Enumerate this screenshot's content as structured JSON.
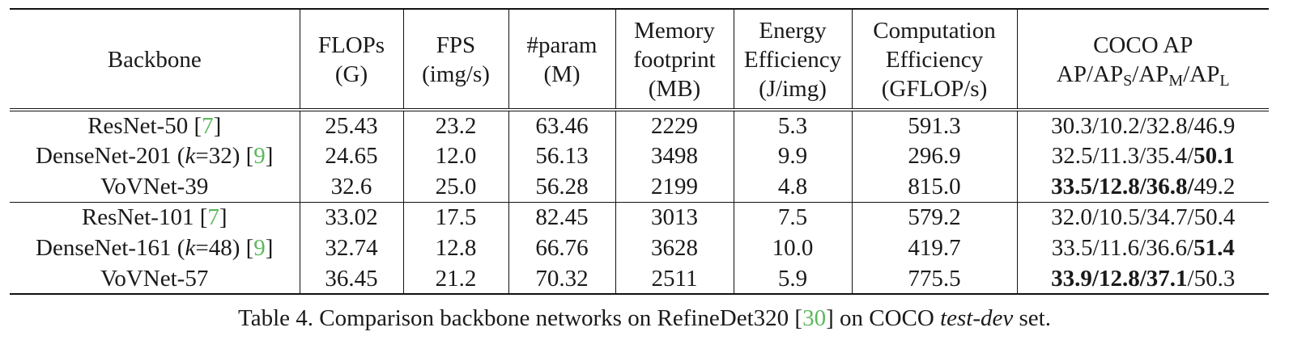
{
  "table": {
    "headers": {
      "backbone": "Backbone",
      "flops": [
        "FLOPs",
        "(G)"
      ],
      "fps": [
        "FPS",
        "(img/s)"
      ],
      "param": [
        "#param",
        "(M)"
      ],
      "memory": [
        "Memory",
        "footprint",
        "(MB)"
      ],
      "energy": [
        "Energy",
        "Efficiency",
        "(J/img)"
      ],
      "computation": [
        "Computation",
        "Efficiency",
        "(GFLOP/s)"
      ],
      "coco_title": "COCO AP",
      "coco_sub": {
        "ap": "AP",
        "aps": "S",
        "apm": "M",
        "apl": "L"
      }
    },
    "rows": [
      {
        "name": "ResNet-50 ",
        "k": "",
        "cite": "7",
        "flops": "25.43",
        "fps": "23.2",
        "param": "63.46",
        "memory": "2229",
        "energy": "5.3",
        "comp": "591.3",
        "ap": [
          "30.3",
          "10.2",
          "32.8",
          "46.9"
        ]
      },
      {
        "name": "DenseNet-201 (",
        "k": "k",
        "k_rest": "=32) ",
        "cite": "9",
        "flops": "24.65",
        "fps": "12.0",
        "param": "56.13",
        "memory": "3498",
        "energy": "9.9",
        "comp": "296.9",
        "ap": [
          "32.5",
          "11.3",
          "35.4",
          "50.1"
        ]
      },
      {
        "name": "VoVNet-39",
        "flops": "32.6",
        "fps": "25.0",
        "param": "56.28",
        "memory": "2199",
        "energy": "4.8",
        "comp": "815.0",
        "ap": [
          "33.5",
          "12.8",
          "36.8",
          "49.2"
        ]
      },
      {
        "name": "ResNet-101 ",
        "cite": "7",
        "flops": "33.02",
        "fps": "17.5",
        "param": "82.45",
        "memory": "3013",
        "energy": "7.5",
        "comp": "579.2",
        "ap": [
          "32.0",
          "10.5",
          "34.7",
          "50.4"
        ]
      },
      {
        "name": "DenseNet-161 (",
        "k": "k",
        "k_rest": "=48) ",
        "cite": "9",
        "flops": "32.74",
        "fps": "12.8",
        "param": "66.76",
        "memory": "3628",
        "energy": "10.0",
        "comp": "419.7",
        "ap": [
          "33.5",
          "11.6",
          "36.6",
          "51.4"
        ]
      },
      {
        "name": "VoVNet-57",
        "flops": "36.45",
        "fps": "21.2",
        "param": "70.32",
        "memory": "2511",
        "energy": "5.9",
        "comp": "775.5",
        "ap": [
          "33.9",
          "12.8",
          "37.1",
          "50.3"
        ]
      }
    ],
    "separators": {
      "slash": "/",
      "bracket_open": "[",
      "bracket_close": "]"
    }
  },
  "caption": {
    "prefix": "Table 4.  Comparison backbone networks on RefineDet320 ",
    "cite": "30",
    "middle": " on COCO ",
    "italic": "test-dev",
    "suffix": " set."
  },
  "colors": {
    "citation": "#5cb85c",
    "text": "#1a1a1a"
  }
}
